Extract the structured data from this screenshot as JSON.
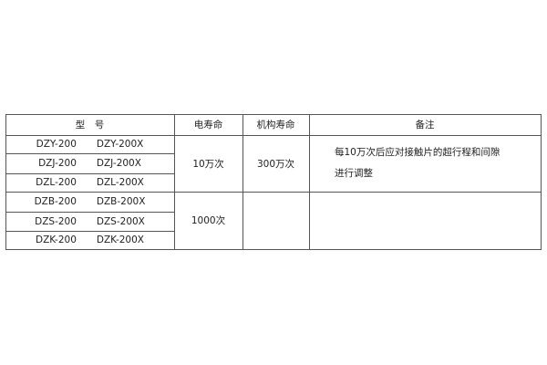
{
  "header": {
    "model": "型　号",
    "electric_life": "电寿命",
    "mechanical_life": "机构寿命",
    "remarks": "备注"
  },
  "groups": [
    {
      "models": [
        [
          "DZY-200",
          "DZY-200X"
        ],
        [
          "DZJ-200",
          "DZJ-200X"
        ],
        [
          "DZL-200",
          "DZL-200X"
        ]
      ],
      "electric_life": "10万次",
      "mechanical_life": "300万次",
      "remarks": [
        "每10万次后应对接触片的超行程和间隙",
        "进行调整"
      ]
    },
    {
      "models": [
        [
          "DZB-200",
          "DZB-200X"
        ],
        [
          "DZS-200",
          "DZS-200X"
        ],
        [
          "DZK-200",
          "DZK-200X"
        ]
      ],
      "electric_life": "1000次",
      "mechanical_life": "",
      "remarks": []
    }
  ]
}
